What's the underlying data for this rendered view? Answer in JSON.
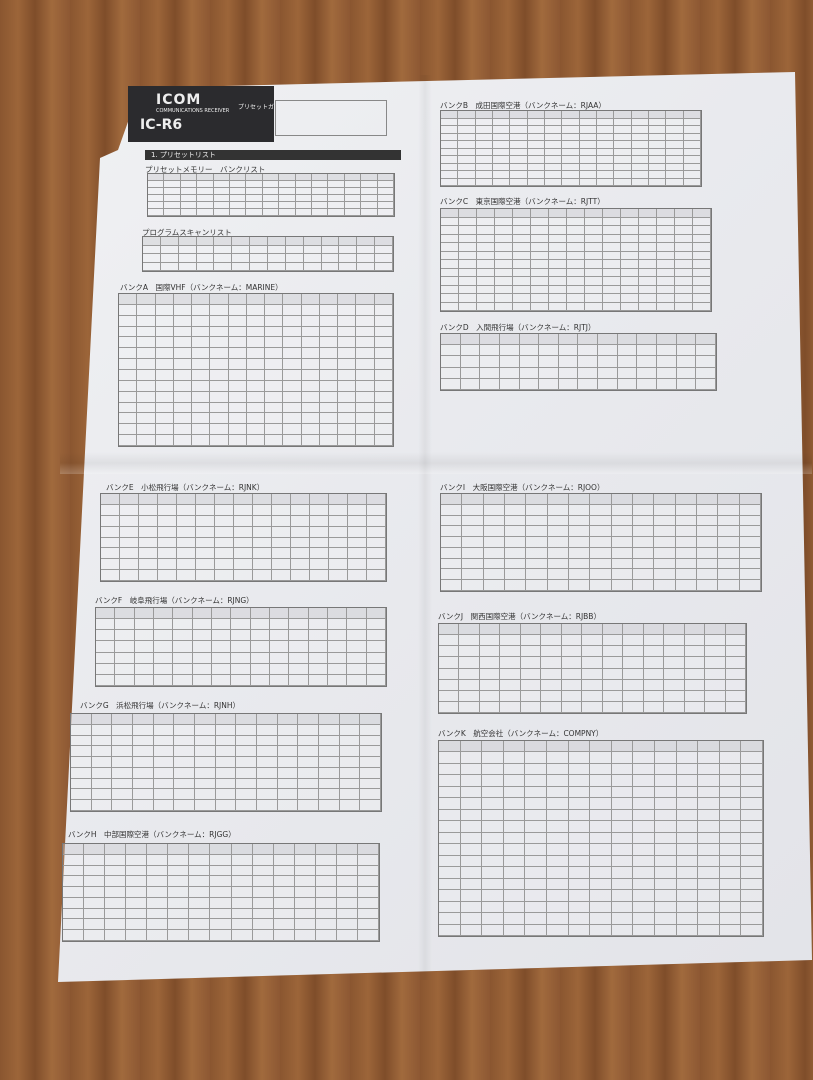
{
  "header": {
    "brand": "ICOM",
    "subtitle": "COMMUNICATIONS RECEIVER",
    "model": "IC-R6",
    "guide_title": "プリセットガイド"
  },
  "section_title": "1. プリセットリスト",
  "headings": {
    "bank_list": "プリセットメモリー　バンクリスト",
    "program_scan": "プログラムスキャンリスト",
    "bank_a": "バンクA　国際VHF（バンクネーム：MARINE）",
    "bank_b": "バンクB　成田国際空港（バンクネーム：RJAA）",
    "bank_c": "バンクC　東京国際空港（バンクネーム：RJTT）",
    "bank_d": "バンクD　入間飛行場（バンクネーム：RJTJ）",
    "bank_e": "バンクE　小松飛行場（バンクネーム：RJNK）",
    "bank_f": "バンクF　岐阜飛行場（バンクネーム：RJNG）",
    "bank_g": "バンクG　浜松飛行場（バンクネーム：RJNH）",
    "bank_h": "バンクH　中部国際空港（バンクネーム：RJGG）",
    "bank_i": "バンクI　大阪国際空港（バンクネーム：RJOO）",
    "bank_j": "バンクJ　関西国際空港（バンクネーム：RJBB）",
    "bank_k": "バンクK　航空会社（バンクネーム：COMPNY）"
  }
}
